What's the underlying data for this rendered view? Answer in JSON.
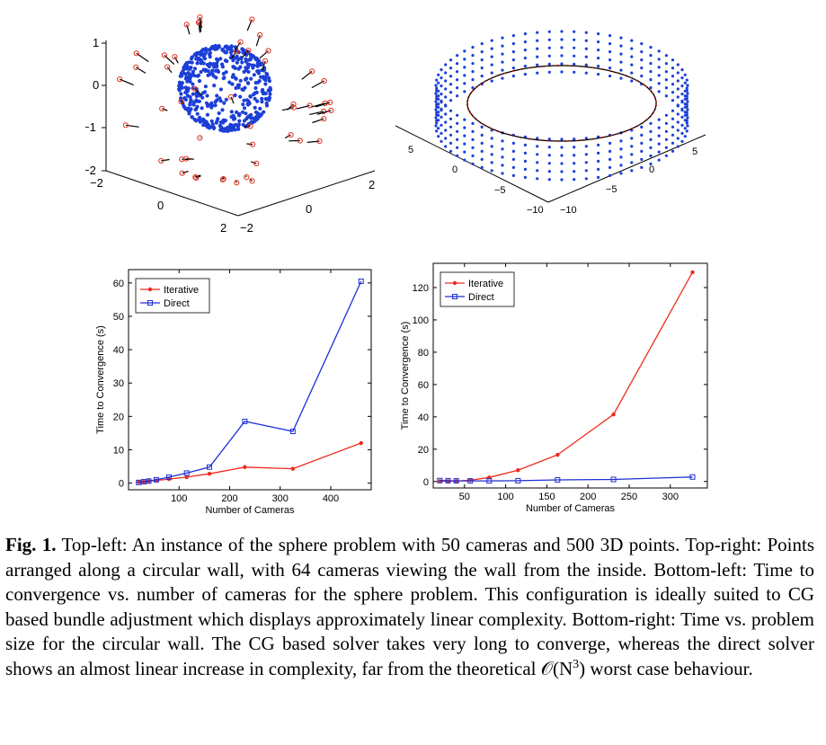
{
  "figure": {
    "top_left": {
      "ticks_z": [
        "1",
        "0",
        "−1",
        "−2"
      ],
      "ticks_x": [
        "−2",
        "0",
        "2"
      ],
      "ticks_y": [
        "−2",
        "0",
        "2"
      ]
    },
    "top_right": {
      "ticks_a": [
        "5",
        "0",
        "−5",
        "−10"
      ],
      "ticks_b": [
        "5",
        "0",
        "−5",
        "−10"
      ]
    }
  },
  "chart_data": [
    {
      "type": "line",
      "xlabel": "Number of Cameras",
      "ylabel": "Time to Convergence (s)",
      "xlim": [
        0,
        480
      ],
      "ylim": [
        -2,
        64
      ],
      "xticks": [
        100,
        200,
        300,
        400
      ],
      "yticks": [
        0,
        10,
        20,
        30,
        40,
        50,
        60
      ],
      "legend": "top-left",
      "series": [
        {
          "name": "Iterative",
          "color": "#ee2b1d",
          "marker": "circle",
          "x": [
            20,
            30,
            40,
            55,
            80,
            115,
            160,
            230,
            325,
            460
          ],
          "y": [
            0.3,
            0.4,
            0.6,
            0.8,
            1.2,
            1.8,
            2.8,
            4.8,
            4.3,
            12.0
          ]
        },
        {
          "name": "Direct",
          "color": "#1c2fd6",
          "marker": "square",
          "x": [
            20,
            30,
            40,
            55,
            80,
            115,
            160,
            230,
            325,
            460
          ],
          "y": [
            0.2,
            0.4,
            0.6,
            1.0,
            1.8,
            3.0,
            4.8,
            18.5,
            15.5,
            60.5
          ]
        }
      ]
    },
    {
      "type": "line",
      "xlabel": "Number of Cameras",
      "ylabel": "Time to Convergence (s)",
      "xlim": [
        12,
        345
      ],
      "ylim": [
        -4,
        135
      ],
      "xticks": [
        50,
        100,
        150,
        200,
        250,
        300
      ],
      "yticks": [
        0,
        20,
        40,
        60,
        80,
        100,
        120
      ],
      "legend": "top-left",
      "series": [
        {
          "name": "Iterative",
          "color": "#ee2b1d",
          "marker": "circle",
          "x": [
            20,
            30,
            40,
            57,
            80,
            115,
            163,
            231,
            327
          ],
          "y": [
            0.2,
            0.2,
            0.3,
            0.8,
            2.5,
            7.0,
            16.5,
            41.5,
            129.5
          ]
        },
        {
          "name": "Direct",
          "color": "#1c2fd6",
          "marker": "square",
          "x": [
            20,
            30,
            40,
            57,
            80,
            115,
            163,
            231,
            327
          ],
          "y": [
            0.6,
            0.5,
            0.4,
            0.4,
            0.4,
            0.5,
            1.0,
            1.3,
            2.8
          ]
        }
      ]
    }
  ],
  "caption": {
    "label": "Fig. 1.",
    "text": "Top-left: An instance of the sphere problem with 50 cameras and 500 3D points. Top-right: Points arranged along a circular wall, with 64 cameras viewing the wall from the inside. Bottom-left: Time to convergence vs. number of cameras for the sphere problem. This configuration is ideally suited to CG based bundle adjustment which displays approximately linear complexity. Bottom-right: Time vs. problem size for the circular wall. The CG based solver takes very long to converge, whereas the direct solver shows an almost linear increase in complexity, far from the theoretical 𝒪(N",
    "superscript": "3",
    "text_end": ") worst case behaviour."
  }
}
